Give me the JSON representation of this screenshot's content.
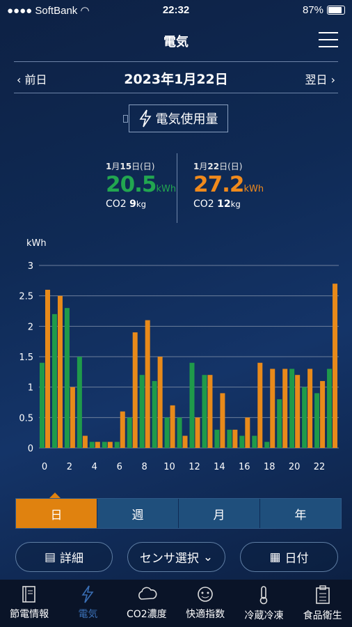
{
  "status_bar": {
    "carrier": "SoftBank",
    "time": "22:32",
    "battery": "87%"
  },
  "header": {
    "title": "電気"
  },
  "datebar": {
    "prev": "前日",
    "current": "2023年1月22日",
    "next": "翌日"
  },
  "sensor": {
    "label": "電気使用量"
  },
  "compare": {
    "left": {
      "month": "1",
      "day": "15",
      "dow": "(日)",
      "month_unit": "月",
      "day_unit": "日",
      "value": "20.5",
      "unit": "kWh",
      "co2_label": "CO2",
      "co2_value": "9",
      "co2_unit": "kg"
    },
    "right": {
      "month": "1",
      "day": "22",
      "dow": "(日)",
      "month_unit": "月",
      "day_unit": "日",
      "value": "27.2",
      "unit": "kWh",
      "co2_label": "CO2",
      "co2_value": "12",
      "co2_unit": "kg"
    }
  },
  "colors": {
    "green": "#1f9a4a",
    "orange": "#e88a1a",
    "accent_green": "#22a650",
    "accent_orange": "#f08a1c"
  },
  "chart_data": {
    "type": "bar",
    "ylabel": "kWh",
    "ylim": [
      0,
      3
    ],
    "yticks": [
      "0",
      "0.5",
      "1",
      "1.5",
      "2",
      "2.5",
      "3"
    ],
    "xticks": [
      "0",
      "2",
      "4",
      "6",
      "8",
      "10",
      "12",
      "14",
      "16",
      "18",
      "20",
      "22"
    ],
    "categories": [
      "0",
      "1",
      "2",
      "3",
      "4",
      "5",
      "6",
      "7",
      "8",
      "9",
      "10",
      "11",
      "12",
      "13",
      "14",
      "15",
      "16",
      "17",
      "18",
      "19",
      "20",
      "21",
      "22",
      "23"
    ],
    "series": [
      {
        "values": [
          1.4,
          2.2,
          2.3,
          1.5,
          0.1,
          0.1,
          0.1,
          0.5,
          1.2,
          1.1,
          0.5,
          0.5,
          1.4,
          1.2,
          0.3,
          0.3,
          0.2,
          0.2,
          0.1,
          0.8,
          1.3,
          1.0,
          0.9,
          1.3
        ]
      },
      {
        "values": [
          2.6,
          2.5,
          1.0,
          0.2,
          0.1,
          0.1,
          0.6,
          1.9,
          2.1,
          1.5,
          0.7,
          0.2,
          0.5,
          1.2,
          0.9,
          0.3,
          0.5,
          1.4,
          1.3,
          1.3,
          1.2,
          1.3,
          1.1,
          2.7
        ]
      }
    ],
    "grid": true
  },
  "period_tabs": [
    "日",
    "週",
    "月",
    "年"
  ],
  "buttons": {
    "detail": "詳細",
    "sensor_select": "センサ選択",
    "date": "日付"
  },
  "tabbar": [
    "節電情報",
    "電気",
    "CO2濃度",
    "快適指数",
    "冷蔵冷凍",
    "食品衛生"
  ]
}
